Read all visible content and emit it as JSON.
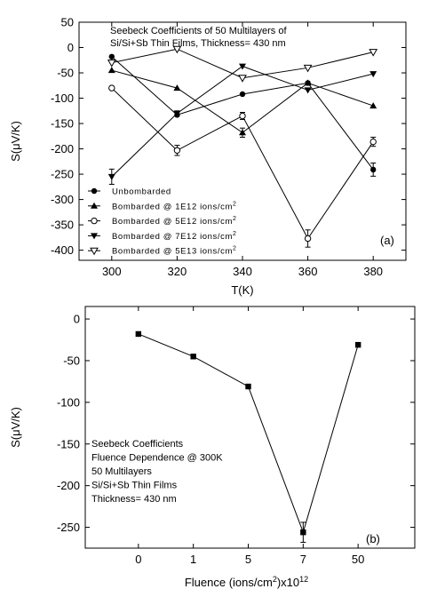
{
  "chart_data": [
    {
      "type": "line",
      "panel_label": "(a)",
      "title_lines": [
        "Seebeck Coefficients of 50 Multilayers of",
        "Si/Si+Sb Thin Films, Thickness= 430 nm"
      ],
      "xlabel": "T(K)",
      "ylabel": "S(μV/K)",
      "x": [
        300,
        320,
        340,
        360,
        380
      ],
      "xlim": [
        290,
        390
      ],
      "ylim": [
        -420,
        50
      ],
      "xticks": [
        300,
        320,
        340,
        360,
        380
      ],
      "yticks": [
        50,
        0,
        -50,
        -100,
        -150,
        -200,
        -250,
        -300,
        -350,
        -400
      ],
      "legend_position": "bottom-left",
      "series": [
        {
          "name": "Unbombarded",
          "marker": "circle-filled",
          "values": [
            -18,
            -133,
            -92,
            -70,
            -241
          ],
          "errors": [
            0,
            0,
            0,
            0,
            13
          ]
        },
        {
          "name": "Bombarded @ 1E12 ions/cm",
          "marker": "triangle-up-filled",
          "values": [
            -45,
            -80,
            -168,
            -70,
            -115
          ],
          "errors": [
            0,
            0,
            9,
            0,
            0
          ]
        },
        {
          "name": "Bombarded @ 5E12 ions/cm",
          "marker": "circle-open",
          "values": [
            -80,
            -203,
            -135,
            -377,
            -186
          ],
          "errors": [
            0,
            10,
            7,
            17,
            9
          ]
        },
        {
          "name": "Bombarded @ 7E12 ions/cm",
          "marker": "triangle-down-filled",
          "values": [
            -255,
            -130,
            -37,
            -84,
            -52
          ],
          "errors": [
            15,
            5,
            0,
            0,
            0
          ]
        },
        {
          "name": "Bombarded @ 5E13 ions/cm",
          "marker": "triangle-down-open",
          "values": [
            -30,
            -3,
            -60,
            -40,
            -9
          ],
          "errors": [
            0,
            0,
            0,
            0,
            0
          ]
        }
      ]
    },
    {
      "type": "line",
      "panel_label": "(b)",
      "annotation_lines": [
        "Seebeck Coefficients",
        "Fluence Dependence @ 300K",
        "50 Multilayers",
        "Si/Si+Sb Thin Films",
        "Thickness= 430 nm"
      ],
      "xlabel_prefix": "Fluence (ions/cm",
      "xlabel_mid": ")x10",
      "xlabel_sup": "12",
      "ylabel": "S(μV/K)",
      "categories": [
        "0",
        "1",
        "5",
        "7",
        "50"
      ],
      "ylim": [
        -275,
        15
      ],
      "yticks": [
        0,
        -50,
        -100,
        -150,
        -200,
        -250
      ],
      "series": [
        {
          "marker": "square-filled",
          "values": [
            -18,
            -45,
            -81,
            -256,
            -31
          ],
          "errors": [
            0,
            0,
            0,
            12,
            0
          ]
        }
      ]
    }
  ]
}
